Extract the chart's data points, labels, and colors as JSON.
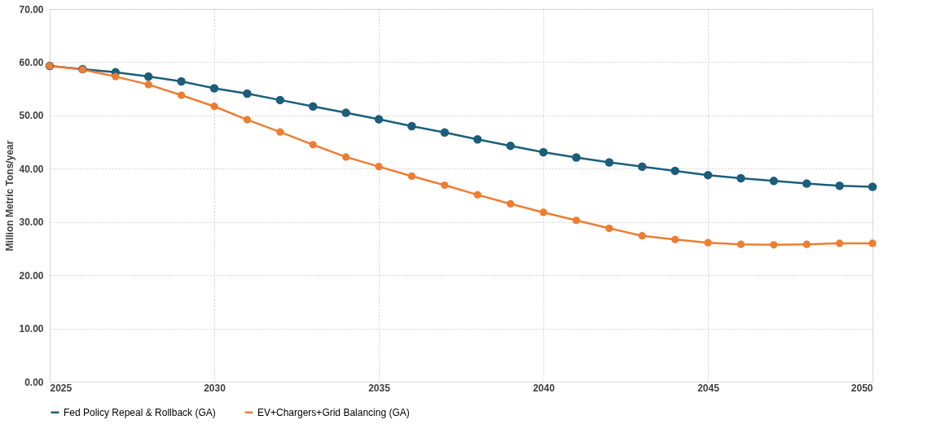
{
  "chart_data": {
    "type": "line",
    "ylabel": "Million Metric Tons/year",
    "x": [
      2025,
      2026,
      2027,
      2028,
      2029,
      2030,
      2031,
      2032,
      2033,
      2034,
      2035,
      2036,
      2037,
      2038,
      2039,
      2040,
      2041,
      2042,
      2043,
      2044,
      2045,
      2046,
      2047,
      2048,
      2049,
      2050
    ],
    "series": [
      {
        "name": "Fed Policy Repeal & Rollback (GA)",
        "color": "#1b5e7b",
        "values": [
          59.3,
          58.7,
          58.1,
          57.3,
          56.4,
          55.1,
          54.1,
          52.9,
          51.7,
          50.5,
          49.3,
          48.0,
          46.8,
          45.5,
          44.3,
          43.1,
          42.1,
          41.2,
          40.4,
          39.6,
          38.8,
          38.2,
          37.7,
          37.2,
          36.8,
          36.6
        ]
      },
      {
        "name": "EV+Chargers+Grid Balancing (GA)",
        "color": "#ed7d31",
        "values": [
          59.3,
          58.6,
          57.3,
          55.8,
          53.8,
          51.7,
          49.2,
          46.9,
          44.5,
          42.2,
          40.4,
          38.6,
          36.9,
          35.1,
          33.4,
          31.8,
          30.3,
          28.8,
          27.4,
          26.7,
          26.1,
          25.8,
          25.7,
          25.8,
          26.0,
          26.0
        ]
      }
    ],
    "xlim": [
      2025,
      2050
    ],
    "xticks": [
      2025,
      2030,
      2035,
      2040,
      2045,
      2050
    ],
    "ylim": [
      0,
      70
    ],
    "yticks": [
      {
        "value": 0,
        "label": "0.00"
      },
      {
        "value": 10,
        "label": "10.00"
      },
      {
        "value": 20,
        "label": "20.00"
      },
      {
        "value": 30,
        "label": "30.00"
      },
      {
        "value": 40,
        "label": "40.00"
      },
      {
        "value": 50,
        "label": "50.00"
      },
      {
        "value": 60,
        "label": "60.00"
      },
      {
        "value": 70,
        "label": "70.00"
      }
    ],
    "grid": true,
    "legend": "bottom",
    "marker": "circle",
    "line_style": "solid"
  }
}
